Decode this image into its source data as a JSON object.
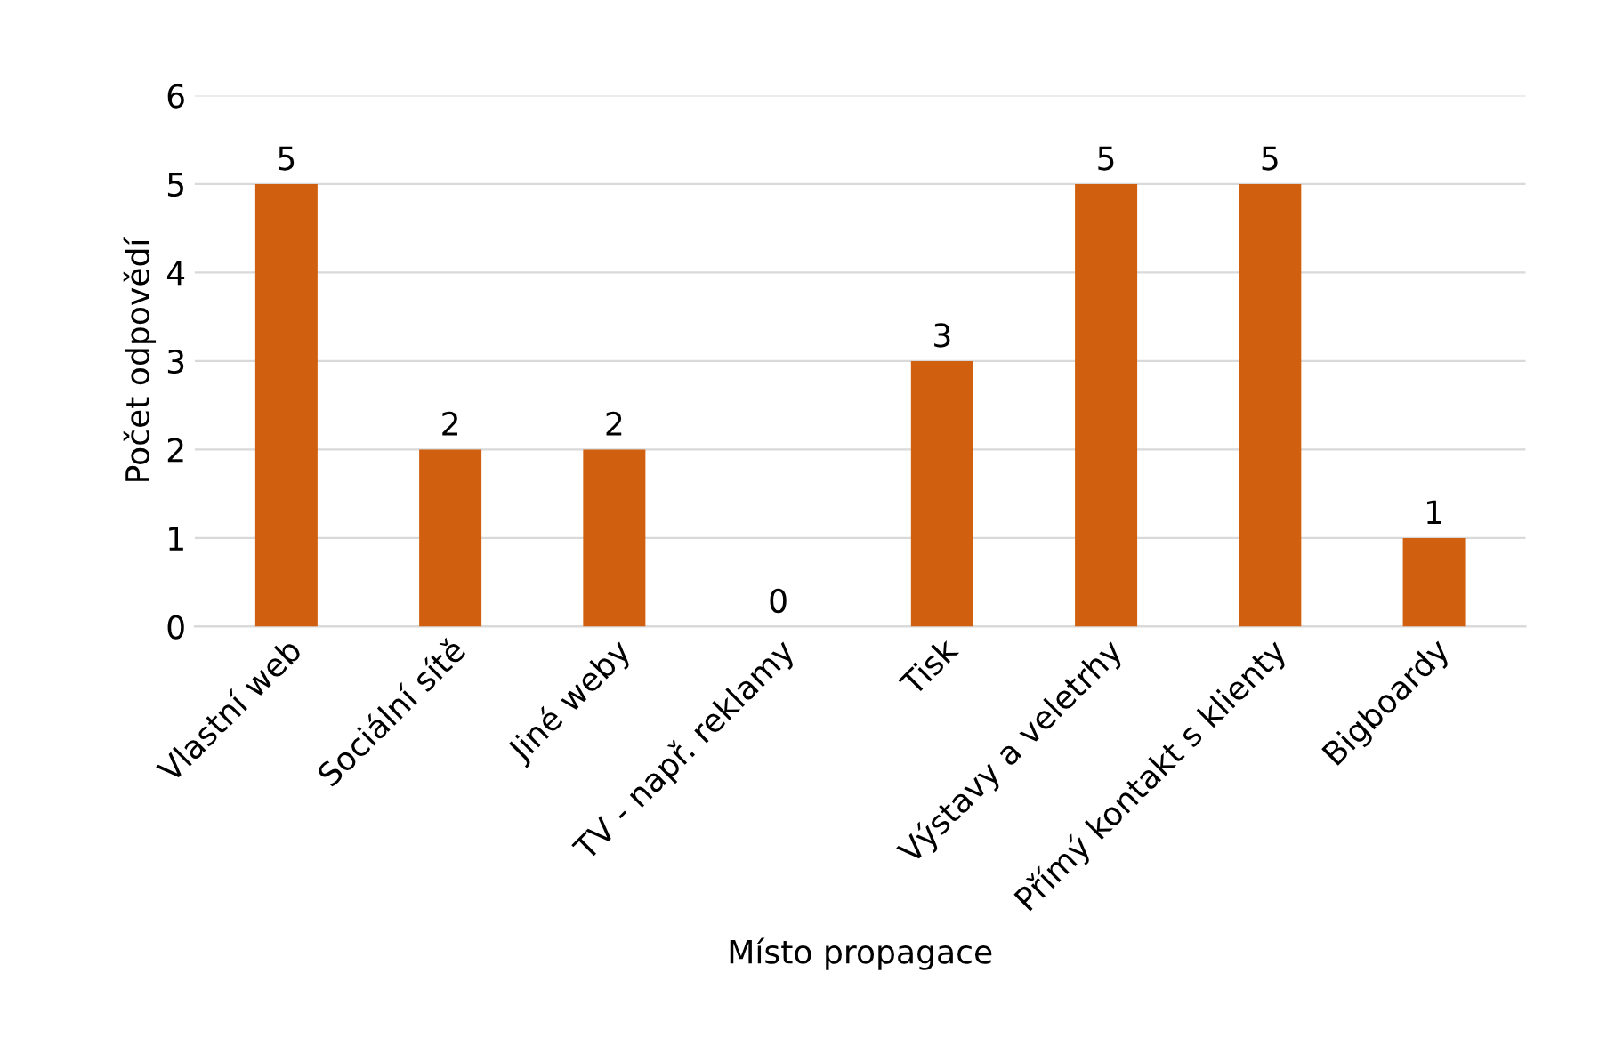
{
  "chart_data": {
    "type": "bar",
    "categories": [
      "Vlastní web",
      "Sociální sítě",
      "Jiné weby",
      "TV - např. reklamy",
      "Tisk",
      "Výstavy a veletrhy",
      "Přímý kontakt s klienty",
      "Bigboardy"
    ],
    "values": [
      5,
      2,
      2,
      0,
      3,
      5,
      5,
      1
    ],
    "color": "#d0600f",
    "xlabel": "Místo propagace",
    "ylabel": "Počet odpovědí",
    "ylim": [
      0,
      6
    ],
    "yticks": [
      0,
      1,
      2,
      3,
      4,
      5,
      6
    ],
    "grid": "y",
    "data_labels": true
  }
}
